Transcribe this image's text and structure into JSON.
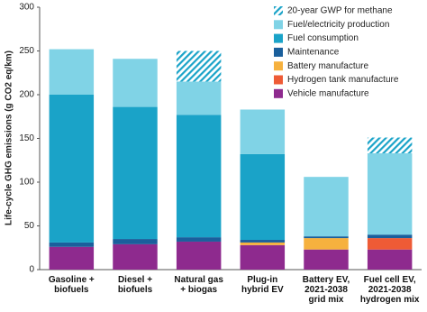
{
  "chart_data": {
    "type": "stacked-bar",
    "y_label": "Life-cycle GHG emissions (g CO2 eq/km)",
    "categories": [
      "Gasoline +\nbiofuels",
      "Diesel +\nbiofuels",
      "Natural gas\n+ biogas",
      "Plug-in\nhybrid EV",
      "Battery EV,\n2021-2038\ngrid mix",
      "Fuel cell EV,\n2021-2038\nhydrogen mix"
    ],
    "series": [
      {
        "name": "Vehicle manufacture",
        "color": "#8e2a8e",
        "values": [
          26,
          29,
          32,
          28,
          23,
          23
        ]
      },
      {
        "name": "Hydrogen tank manufacture",
        "color": "#ee5b36",
        "values": [
          null,
          null,
          null,
          null,
          null,
          13
        ]
      },
      {
        "name": "Battery manufacture",
        "color": "#f6b13e",
        "values": [
          null,
          null,
          null,
          3,
          13,
          null
        ]
      },
      {
        "name": "Maintenance",
        "color": "#1a5f9c",
        "values": [
          5,
          6,
          5,
          3,
          2,
          4
        ]
      },
      {
        "name": "Fuel consumption",
        "color": "#1aa3c8",
        "values": [
          169,
          151,
          140,
          98,
          null,
          null
        ]
      },
      {
        "name": "Fuel/electricity production",
        "color": "#80d3e6",
        "values": [
          52,
          55,
          38,
          51,
          68,
          93
        ]
      },
      {
        "name": "20-year GWP for methane",
        "color": "#1aa3c8",
        "hatched": true,
        "values": [
          null,
          null,
          35,
          null,
          null,
          18
        ]
      }
    ],
    "ylim": [
      0,
      300
    ],
    "yticks": [
      0,
      50,
      100,
      150,
      200,
      250,
      300
    ]
  }
}
